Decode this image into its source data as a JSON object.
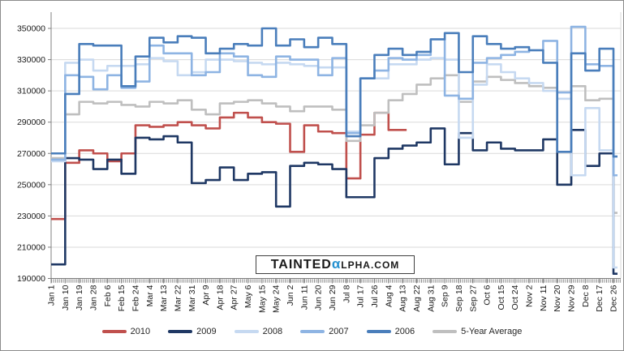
{
  "watermark": {
    "pre": "TAINTED",
    "alpha": "α",
    "post": "LPHA.COM",
    "alpha_color": "#2792D0"
  },
  "chart_data": {
    "type": "line",
    "title": "",
    "xlabel": "",
    "ylabel": "",
    "ylim": [
      190000,
      350000
    ],
    "y_ticks": [
      350000,
      330000,
      310000,
      290000,
      270000,
      250000,
      230000,
      210000,
      190000
    ],
    "grid": "horizontal",
    "legend_position": "bottom",
    "line_style": "step",
    "x_labels": [
      "Jan 1",
      "Jan 10",
      "Jan 19",
      "Jan 28",
      "Feb 6",
      "Feb 15",
      "Feb 24",
      "Mar 4",
      "Mar 13",
      "Mar 22",
      "Mar 31",
      "Apr 9",
      "Apr 18",
      "Apr 27",
      "May 6",
      "May 15",
      "May 24",
      "Jun 2",
      "Jun 11",
      "Jun 20",
      "Jun 29",
      "Jul 8",
      "Jul 17",
      "Jul 26",
      "Aug 4",
      "Aug 13",
      "Aug 22",
      "Aug 31",
      "Sep 9",
      "Sep 18",
      "Sep 27",
      "Oct 6",
      "Oct 15",
      "Oct 24",
      "Nov 2",
      "Nov 11",
      "Nov 20",
      "Nov 29",
      "Dec 8",
      "Dec 17",
      "Dec 26"
    ],
    "series": [
      {
        "name": "2010",
        "color": "#C0504D",
        "values": [
          228000,
          264000,
          272000,
          270000,
          265000,
          270000,
          288000,
          287000,
          288000,
          290000,
          288000,
          286000,
          293000,
          296000,
          293000,
          290000,
          289000,
          271000,
          288000,
          284000,
          283000,
          254000,
          282000,
          296000,
          285000,
          285000,
          null,
          null,
          null,
          null,
          null,
          null,
          null,
          null,
          null,
          null,
          null,
          null,
          null,
          null,
          null
        ]
      },
      {
        "name": "2009",
        "color": "#1F3864",
        "values": [
          199000,
          267000,
          266000,
          260000,
          266000,
          257000,
          280000,
          279000,
          281000,
          277000,
          251000,
          253000,
          261000,
          253000,
          257000,
          258000,
          236000,
          262000,
          264000,
          263000,
          260000,
          242000,
          242000,
          267000,
          273000,
          275000,
          277000,
          286000,
          263000,
          283000,
          272000,
          277000,
          273000,
          272000,
          272000,
          279000,
          250000,
          285000,
          262000,
          270000,
          193000
        ]
      },
      {
        "name": "2008",
        "color": "#C6D9F1",
        "values": [
          265000,
          328000,
          330000,
          323000,
          326000,
          326000,
          327000,
          331000,
          329000,
          320000,
          322000,
          330000,
          330000,
          329000,
          328000,
          327000,
          328000,
          327000,
          326000,
          325000,
          325000,
          284000,
          318000,
          318000,
          327000,
          327000,
          330000,
          331000,
          330000,
          280000,
          314000,
          327000,
          322000,
          318000,
          315000,
          310000,
          305000,
          256000,
          299000,
          272000,
          197000
        ]
      },
      {
        "name": "2007",
        "color": "#8EB4E3",
        "values": [
          266000,
          320000,
          319000,
          311000,
          320000,
          312000,
          316000,
          339000,
          334000,
          334000,
          320000,
          322000,
          334000,
          332000,
          320000,
          319000,
          332000,
          330000,
          330000,
          320000,
          331000,
          283000,
          318000,
          323000,
          331000,
          330000,
          333000,
          343000,
          307000,
          305000,
          328000,
          331000,
          333000,
          335000,
          336000,
          342000,
          309000,
          351000,
          327000,
          326000,
          256000
        ]
      },
      {
        "name": "2006",
        "color": "#4A7EBB",
        "values": [
          270000,
          308000,
          340000,
          339000,
          339000,
          313000,
          332000,
          344000,
          341000,
          345000,
          344000,
          334000,
          337000,
          340000,
          339000,
          350000,
          339000,
          343000,
          338000,
          344000,
          340000,
          281000,
          318000,
          333000,
          337000,
          333000,
          335000,
          343000,
          347000,
          322000,
          345000,
          340000,
          337000,
          338000,
          336000,
          328000,
          271000,
          334000,
          323000,
          337000,
          268000
        ]
      },
      {
        "name": "5-Year Average",
        "color": "#BFBFBF",
        "values": [
          267000,
          295000,
          303000,
          302000,
          303000,
          301000,
          300000,
          303000,
          302000,
          304000,
          298000,
          295000,
          302000,
          303000,
          304000,
          302000,
          300000,
          297000,
          300000,
          300000,
          298000,
          278000,
          288000,
          296000,
          304000,
          308000,
          314000,
          318000,
          320000,
          303000,
          316000,
          319000,
          317000,
          315000,
          313000,
          312000,
          250000,
          313000,
          304000,
          305000,
          232000
        ]
      }
    ]
  }
}
